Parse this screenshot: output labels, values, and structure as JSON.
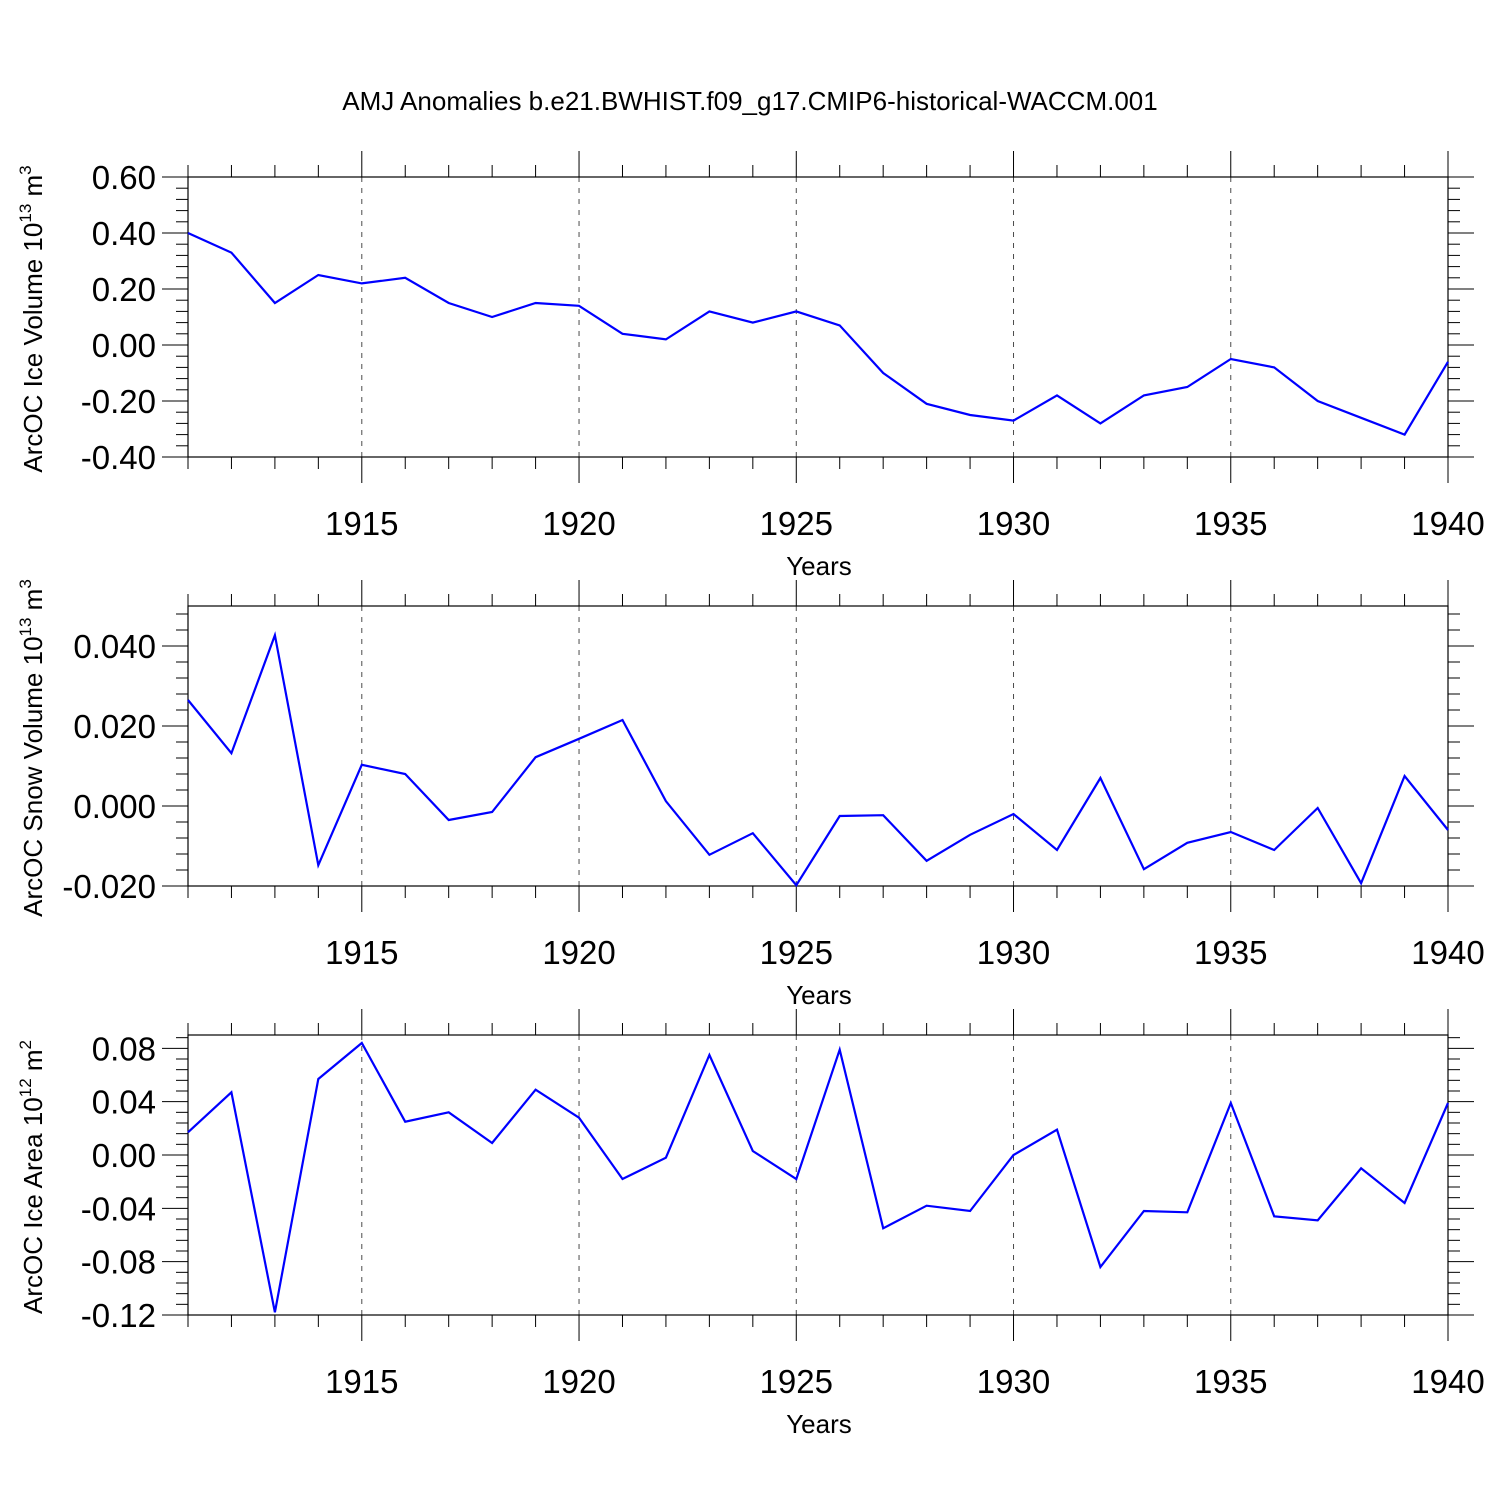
{
  "title": "AMJ Anomalies b.e21.BWHIST.f09_g17.CMIP6-historical-WACCM.001",
  "colors": {
    "line": "#0000ff",
    "axis": "#000000",
    "grid": "#000000"
  },
  "chart_data": [
    {
      "type": "line",
      "ylabel": "ArcOC Ice Volume 10",
      "ylabel_exp": "13",
      "ylabel_unit": " m",
      "ylabel_unit_exp": "3",
      "xlabel": "Years",
      "xlim": [
        1911,
        1940
      ],
      "ylim": [
        -0.4,
        0.6
      ],
      "xticks": [
        1915,
        1920,
        1925,
        1930,
        1935,
        1940
      ],
      "yticks": [
        -0.4,
        -0.2,
        0.0,
        0.2,
        0.4,
        0.6
      ],
      "ytick_labels": [
        "-0.40",
        "-0.20",
        "0.00",
        "0.20",
        "0.40",
        "0.60"
      ],
      "grid": "vertical dashed at major x ticks",
      "series": [
        {
          "x": [
            1911,
            1912,
            1913,
            1914,
            1915,
            1916,
            1917,
            1918,
            1919,
            1920,
            1921,
            1922,
            1923,
            1924,
            1925,
            1926,
            1927,
            1928,
            1929,
            1930,
            1931,
            1932,
            1933,
            1934,
            1935,
            1936,
            1937,
            1938,
            1939,
            1940
          ],
          "values": [
            0.4,
            0.33,
            0.15,
            0.25,
            0.22,
            0.24,
            0.15,
            0.1,
            0.15,
            0.14,
            0.04,
            0.02,
            0.12,
            0.08,
            0.12,
            0.07,
            -0.1,
            -0.21,
            -0.25,
            -0.27,
            -0.18,
            -0.28,
            -0.18,
            -0.15,
            -0.05,
            -0.08,
            -0.2,
            -0.26,
            -0.32,
            -0.06
          ]
        }
      ]
    },
    {
      "type": "line",
      "ylabel": "ArcOC Snow Volume 10",
      "ylabel_exp": "13",
      "ylabel_unit": " m",
      "ylabel_unit_exp": "3",
      "xlabel": "Years",
      "xlim": [
        1911,
        1940
      ],
      "ylim": [
        -0.02,
        0.05
      ],
      "xticks": [
        1915,
        1920,
        1925,
        1930,
        1935,
        1940
      ],
      "yticks": [
        -0.02,
        0.0,
        0.02,
        0.04
      ],
      "ytick_labels": [
        "-0.020",
        "0.000",
        "0.020",
        "0.040"
      ],
      "grid": "vertical dashed at major x ticks",
      "series": [
        {
          "x": [
            1911,
            1912,
            1913,
            1914,
            1915,
            1916,
            1917,
            1918,
            1919,
            1920,
            1921,
            1922,
            1923,
            1924,
            1925,
            1926,
            1927,
            1928,
            1929,
            1930,
            1931,
            1932,
            1933,
            1934,
            1935,
            1936,
            1937,
            1938,
            1939,
            1940
          ],
          "values": [
            0.0265,
            0.0132,
            0.0427,
            -0.0148,
            0.0103,
            0.008,
            -0.0035,
            -0.0015,
            0.0122,
            0.0168,
            0.0215,
            0.0012,
            -0.0122,
            -0.0068,
            -0.0198,
            -0.0025,
            -0.0023,
            -0.0137,
            -0.0072,
            -0.002,
            -0.011,
            0.007,
            -0.0158,
            -0.0092,
            -0.0065,
            -0.011,
            -0.0005,
            -0.0193,
            0.0075,
            -0.006
          ]
        }
      ]
    },
    {
      "type": "line",
      "ylabel": "ArcOC Ice Area 10",
      "ylabel_exp": "12",
      "ylabel_unit": " m",
      "ylabel_unit_exp": "2",
      "xlabel": "Years",
      "xlim": [
        1911,
        1940
      ],
      "ylim": [
        -0.12,
        0.09
      ],
      "xticks": [
        1915,
        1920,
        1925,
        1930,
        1935,
        1940
      ],
      "yticks": [
        -0.12,
        -0.08,
        -0.04,
        0.0,
        0.04,
        0.08
      ],
      "ytick_labels": [
        "-0.12",
        "-0.08",
        "-0.04",
        "0.00",
        "0.04",
        "0.08"
      ],
      "grid": "vertical dashed at major x ticks",
      "series": [
        {
          "x": [
            1911,
            1912,
            1913,
            1914,
            1915,
            1916,
            1917,
            1918,
            1919,
            1920,
            1921,
            1922,
            1923,
            1924,
            1925,
            1926,
            1927,
            1928,
            1929,
            1930,
            1931,
            1932,
            1933,
            1934,
            1935,
            1936,
            1937,
            1938,
            1939,
            1940
          ],
          "values": [
            0.017,
            0.047,
            -0.118,
            0.057,
            0.084,
            0.025,
            0.032,
            0.009,
            0.049,
            0.028,
            -0.018,
            -0.002,
            0.075,
            0.003,
            -0.018,
            0.079,
            -0.055,
            -0.038,
            -0.042,
            0.0,
            0.019,
            -0.084,
            -0.042,
            -0.043,
            0.039,
            -0.046,
            -0.049,
            -0.01,
            -0.036,
            0.039
          ]
        }
      ]
    }
  ]
}
